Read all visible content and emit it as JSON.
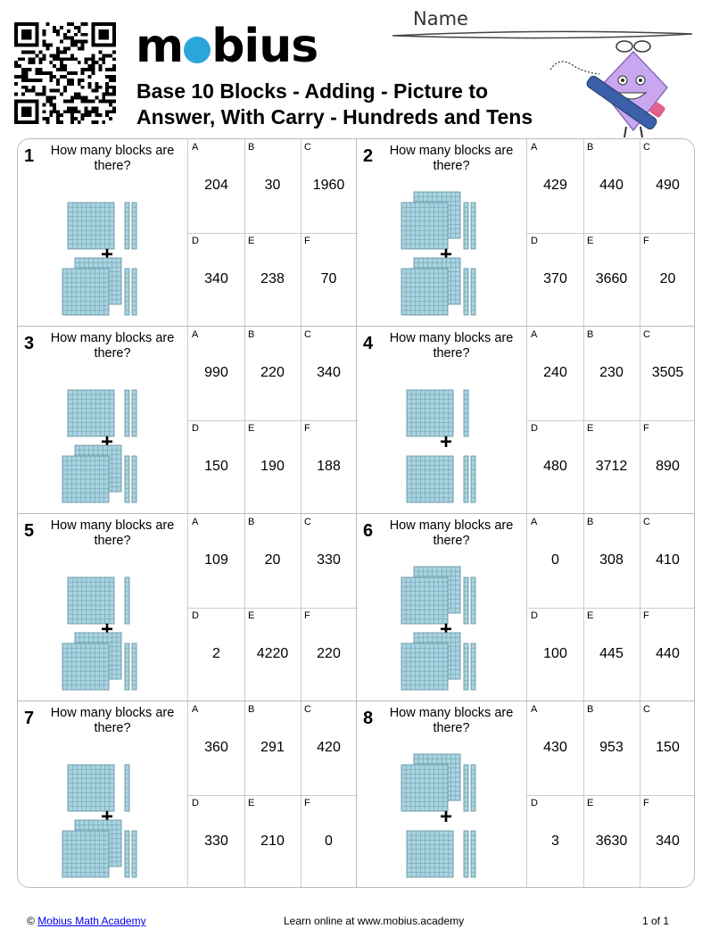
{
  "header": {
    "logo_text": "mobius",
    "title": "Base 10 Blocks - Adding - Picture to Answer, With Carry - Hundreds and Tens",
    "name_label": "Name"
  },
  "question_text": "How many blocks are there?",
  "problems": [
    {
      "number": "1",
      "top": {
        "hundreds": 1,
        "tens": 2
      },
      "bottom": {
        "hundreds": 2,
        "tens": 2
      },
      "answers": [
        {
          "letter": "A",
          "value": "204"
        },
        {
          "letter": "B",
          "value": "30"
        },
        {
          "letter": "C",
          "value": "1960"
        },
        {
          "letter": "D",
          "value": "340"
        },
        {
          "letter": "E",
          "value": "238"
        },
        {
          "letter": "F",
          "value": "70"
        }
      ]
    },
    {
      "number": "2",
      "top": {
        "hundreds": 2,
        "tens": 2
      },
      "bottom": {
        "hundreds": 2,
        "tens": 2
      },
      "answers": [
        {
          "letter": "A",
          "value": "429"
        },
        {
          "letter": "B",
          "value": "440"
        },
        {
          "letter": "C",
          "value": "490"
        },
        {
          "letter": "D",
          "value": "370"
        },
        {
          "letter": "E",
          "value": "3660"
        },
        {
          "letter": "F",
          "value": "20"
        }
      ]
    },
    {
      "number": "3",
      "top": {
        "hundreds": 1,
        "tens": 2
      },
      "bottom": {
        "hundreds": 2,
        "tens": 2
      },
      "answers": [
        {
          "letter": "A",
          "value": "990"
        },
        {
          "letter": "B",
          "value": "220"
        },
        {
          "letter": "C",
          "value": "340"
        },
        {
          "letter": "D",
          "value": "150"
        },
        {
          "letter": "E",
          "value": "190"
        },
        {
          "letter": "F",
          "value": "188"
        }
      ]
    },
    {
      "number": "4",
      "top": {
        "hundreds": 1,
        "tens": 1
      },
      "bottom": {
        "hundreds": 1,
        "tens": 2
      },
      "answers": [
        {
          "letter": "A",
          "value": "240"
        },
        {
          "letter": "B",
          "value": "230"
        },
        {
          "letter": "C",
          "value": "3505"
        },
        {
          "letter": "D",
          "value": "480"
        },
        {
          "letter": "E",
          "value": "3712"
        },
        {
          "letter": "F",
          "value": "890"
        }
      ]
    },
    {
      "number": "5",
      "top": {
        "hundreds": 1,
        "tens": 1
      },
      "bottom": {
        "hundreds": 2,
        "tens": 2
      },
      "answers": [
        {
          "letter": "A",
          "value": "109"
        },
        {
          "letter": "B",
          "value": "20"
        },
        {
          "letter": "C",
          "value": "330"
        },
        {
          "letter": "D",
          "value": "2"
        },
        {
          "letter": "E",
          "value": "4220"
        },
        {
          "letter": "F",
          "value": "220"
        }
      ]
    },
    {
      "number": "6",
      "top": {
        "hundreds": 2,
        "tens": 2
      },
      "bottom": {
        "hundreds": 2,
        "tens": 2
      },
      "answers": [
        {
          "letter": "A",
          "value": "0"
        },
        {
          "letter": "B",
          "value": "308"
        },
        {
          "letter": "C",
          "value": "410"
        },
        {
          "letter": "D",
          "value": "100"
        },
        {
          "letter": "E",
          "value": "445"
        },
        {
          "letter": "F",
          "value": "440"
        }
      ]
    },
    {
      "number": "7",
      "top": {
        "hundreds": 1,
        "tens": 1
      },
      "bottom": {
        "hundreds": 2,
        "tens": 2
      },
      "answers": [
        {
          "letter": "A",
          "value": "360"
        },
        {
          "letter": "B",
          "value": "291"
        },
        {
          "letter": "C",
          "value": "420"
        },
        {
          "letter": "D",
          "value": "330"
        },
        {
          "letter": "E",
          "value": "210"
        },
        {
          "letter": "F",
          "value": "0"
        }
      ]
    },
    {
      "number": "8",
      "top": {
        "hundreds": 2,
        "tens": 2
      },
      "bottom": {
        "hundreds": 1,
        "tens": 2
      },
      "answers": [
        {
          "letter": "A",
          "value": "430"
        },
        {
          "letter": "B",
          "value": "953"
        },
        {
          "letter": "C",
          "value": "150"
        },
        {
          "letter": "D",
          "value": "3"
        },
        {
          "letter": "E",
          "value": "3630"
        },
        {
          "letter": "F",
          "value": "340"
        }
      ]
    }
  ],
  "plus_sign": "+",
  "footer": {
    "copyright_symbol": "©",
    "academy_link": "Mobius Math Academy",
    "learn_online": "Learn online at www.mobius.academy",
    "page_info": "1 of 1"
  },
  "colors": {
    "block_fill": "#a8d3e0",
    "block_line": "#5b8a9a",
    "accent": "#2aa6dc",
    "mascot": "#c9a6f0"
  }
}
